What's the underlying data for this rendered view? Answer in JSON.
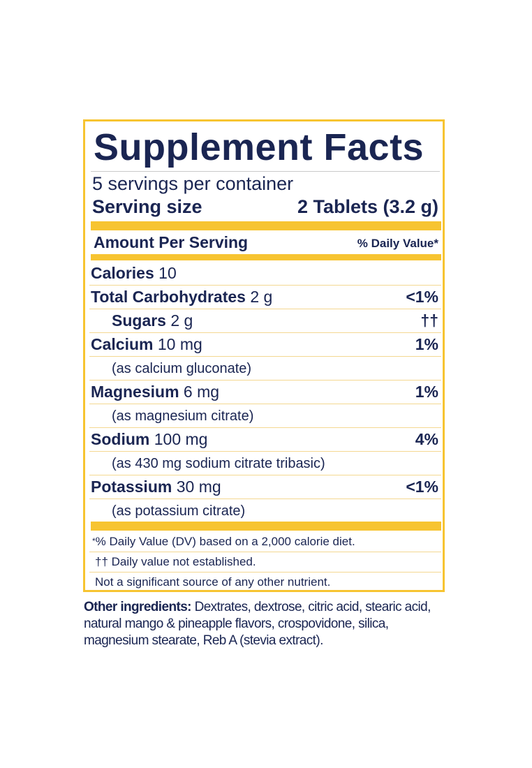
{
  "title": "Supplement Facts",
  "servings_per_container": "5 servings per container",
  "serving_size_label": "Serving size",
  "serving_size_value": "2 Tablets (3.2 g)",
  "amount_per_serving": "Amount Per Serving",
  "daily_value_header": "% Daily Value*",
  "rows": [
    {
      "name": "Calories",
      "amount": " 10",
      "dv": ""
    },
    {
      "name": "Total Carbohydrates",
      "amount": " 2 g",
      "dv": "<1%"
    },
    {
      "name": "Sugars",
      "amount": " 2 g",
      "dv": "††"
    },
    {
      "name": "Calcium",
      "amount": " 10 mg",
      "dv": "1%"
    },
    {
      "note": "(as calcium gluconate)"
    },
    {
      "name": "Magnesium",
      "amount": " 6 mg",
      "dv": "1%"
    },
    {
      "note": "(as magnesium citrate)"
    },
    {
      "name": "Sodium",
      "amount": " 100 mg",
      "dv": "4%"
    },
    {
      "note": "(as 430 mg sodium citrate tribasic)"
    },
    {
      "name": "Potassium",
      "amount": " 30 mg",
      "dv": "<1%"
    },
    {
      "note": "(as potassium citrate)"
    }
  ],
  "footnotes": {
    "dv_star": "*",
    "dv_note": "% Daily Value (DV) based on a 2,000 calorie diet.",
    "not_established": "†† Daily value not established.",
    "not_significant": "Not a significant source of any other nutrient."
  },
  "other_ingredients": {
    "label": "Other ingredients:",
    "text": " Dextrates, dextrose, citric acid, stearic acid, natural mango & pineapple flavors, crospovidone, silica, magnesium stearate, Reb A (stevia extract)."
  },
  "colors": {
    "accent": "#f7c431",
    "text": "#1a2552"
  }
}
